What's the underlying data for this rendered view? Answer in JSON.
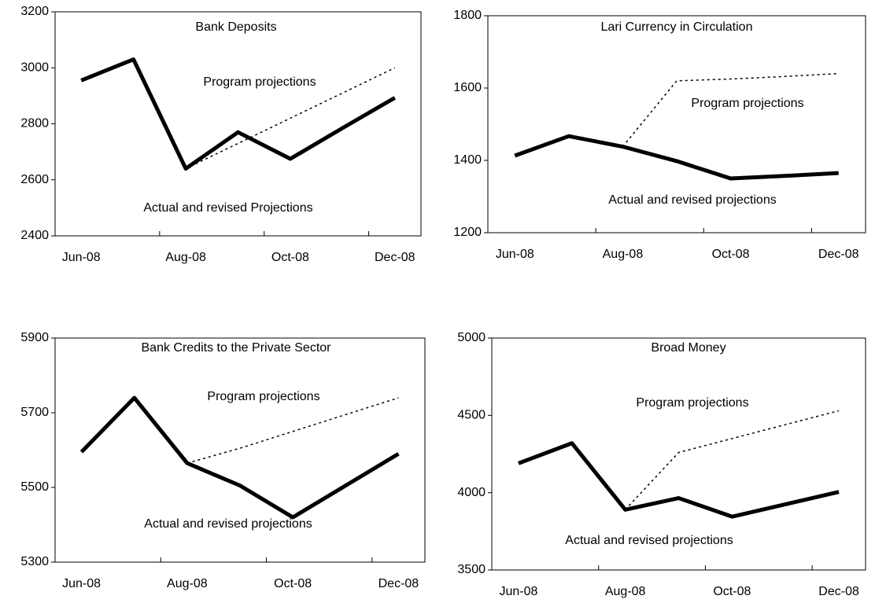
{
  "chart_data": [
    {
      "type": "line",
      "title": "Bank Deposits",
      "categories": [
        "Jun-08",
        null,
        "Aug-08",
        null,
        "Oct-08",
        null,
        "Dec-08"
      ],
      "ylim": [
        2400,
        3200
      ],
      "yticks": [
        2400,
        2600,
        2800,
        3000,
        3200
      ],
      "series": [
        {
          "name": "Actual and revised Projections",
          "color": "#000000",
          "style": "solid",
          "values": [
            2955,
            3030,
            2640,
            2770,
            2675,
            2785,
            2893
          ]
        },
        {
          "name": "Program projections",
          "color": "#000000",
          "style": "dotted",
          "values": [
            null,
            null,
            2640,
            2730,
            2820,
            2910,
            3000
          ]
        }
      ]
    },
    {
      "type": "line",
      "title": "Lari Currency in Circulation",
      "categories": [
        "Jun-08",
        null,
        "Aug-08",
        null,
        "Oct-08",
        null,
        "Dec-08"
      ],
      "ylim": [
        1200,
        1800
      ],
      "yticks": [
        1200,
        1400,
        1600,
        1800
      ],
      "series": [
        {
          "name": "Actual and revised projections",
          "color": "#000000",
          "style": "solid",
          "values": [
            1413,
            1467,
            1438,
            1398,
            1350,
            1357,
            1365
          ]
        },
        {
          "name": "Program projections",
          "color": "#000000",
          "style": "dotted",
          "values": [
            null,
            null,
            1438,
            1620,
            1625,
            1632,
            1640
          ]
        }
      ]
    },
    {
      "type": "line",
      "title": "Bank Credits to the Private Sector",
      "categories": [
        "Jun-08",
        null,
        "Aug-08",
        null,
        "Oct-08",
        null,
        "Dec-08"
      ],
      "ylim": [
        5300,
        5900
      ],
      "yticks": [
        5300,
        5500,
        5700,
        5900
      ],
      "series": [
        {
          "name": "Actual and revised projections",
          "color": "#000000",
          "style": "solid",
          "values": [
            5595,
            5740,
            5565,
            5505,
            5420,
            5505,
            5590
          ]
        },
        {
          "name": "Program projections",
          "color": "#000000",
          "style": "dotted",
          "values": [
            null,
            null,
            5565,
            5605,
            5650,
            5695,
            5740
          ]
        }
      ]
    },
    {
      "type": "line",
      "title": "Broad Money",
      "categories": [
        "Jun-08",
        null,
        "Aug-08",
        null,
        "Oct-08",
        null,
        "Dec-08"
      ],
      "ylim": [
        3500,
        5000
      ],
      "yticks": [
        3500,
        4000,
        4500,
        5000
      ],
      "series": [
        {
          "name": "Actual and revised projections",
          "color": "#000000",
          "style": "solid",
          "values": [
            4190,
            4320,
            3890,
            3965,
            3845,
            3925,
            4005
          ]
        },
        {
          "name": "Program projections",
          "color": "#000000",
          "style": "dotted",
          "values": [
            null,
            null,
            3890,
            4260,
            4350,
            4440,
            4530
          ]
        }
      ]
    }
  ]
}
